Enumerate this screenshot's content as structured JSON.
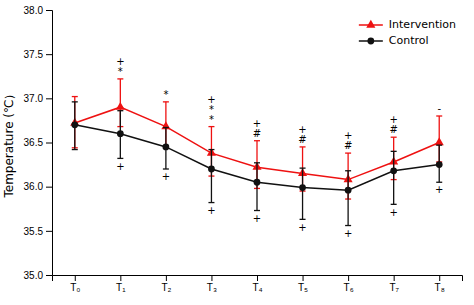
{
  "chart_data": {
    "type": "line",
    "y_label": "Temperature (℃）",
    "categories": [
      "T₀",
      "T₁",
      "T₂",
      "T₃",
      "T₄",
      "T₅",
      "T₆",
      "T₇",
      "T₈"
    ],
    "ylim": [
      35.0,
      38.0
    ],
    "yticks": [
      {
        "value": 35.0,
        "label": "35.0"
      },
      {
        "value": 35.5,
        "label": "35.5"
      },
      {
        "value": 36.0,
        "label": "36.0"
      },
      {
        "value": 36.5,
        "label": "36.5"
      },
      {
        "value": 37.0,
        "label": "37.0"
      },
      {
        "value": 37.5,
        "label": "37.5"
      },
      {
        "value": 38.0,
        "label": "38.0"
      }
    ],
    "grid": false,
    "legend": "upper right",
    "series": [
      {
        "name": "Intervention",
        "color": "#ee1111",
        "marker": "triangle",
        "line_style": "solid",
        "values": [
          36.72,
          36.9,
          36.68,
          36.38,
          36.22,
          36.15,
          36.08,
          36.28,
          36.5
        ],
        "yerr_upper": [
          0.3,
          0.32,
          0.28,
          0.3,
          0.3,
          0.3,
          0.3,
          0.28,
          0.3
        ],
        "yerr_lower": [
          0.28,
          0.22,
          0.22,
          0.26,
          0.24,
          0.2,
          0.22,
          0.2,
          0.22
        ],
        "annotation_position": "above",
        "annotations": [
          {
            "category": "T₁",
            "lines": [
              "+",
              "*"
            ]
          },
          {
            "category": "T₂",
            "lines": [
              "*"
            ]
          },
          {
            "category": "T₃",
            "lines": [
              "+",
              "*",
              "*"
            ]
          },
          {
            "category": "T₄",
            "lines": [
              "+",
              "#"
            ]
          },
          {
            "category": "T₅",
            "lines": [
              "+",
              "#"
            ]
          },
          {
            "category": "T₆",
            "lines": [
              "+",
              "#"
            ]
          },
          {
            "category": "T₇",
            "lines": [
              "+",
              "#"
            ]
          },
          {
            "category": "T₈",
            "lines": [
              "-"
            ]
          }
        ]
      },
      {
        "name": "Control",
        "color": "#111111",
        "marker": "circle",
        "line_style": "solid",
        "values": [
          36.7,
          36.6,
          36.45,
          36.2,
          36.05,
          35.99,
          35.96,
          36.18,
          36.25
        ],
        "yerr_upper": [
          0.26,
          0.26,
          0.22,
          0.22,
          0.22,
          0.22,
          0.22,
          0.22,
          0.22
        ],
        "yerr_lower": [
          0.28,
          0.28,
          0.25,
          0.38,
          0.32,
          0.36,
          0.4,
          0.38,
          0.2
        ],
        "annotation_position": "below",
        "annotations": [
          {
            "category": "T₁",
            "lines": [
              "+"
            ]
          },
          {
            "category": "T₂",
            "lines": [
              "+"
            ]
          },
          {
            "category": "T₃",
            "lines": [
              "+"
            ]
          },
          {
            "category": "T₄",
            "lines": [
              "+"
            ]
          },
          {
            "category": "T₅",
            "lines": [
              "+"
            ]
          },
          {
            "category": "T₆",
            "lines": [
              "+"
            ]
          },
          {
            "category": "T₇",
            "lines": [
              "+"
            ]
          },
          {
            "category": "T₈",
            "lines": [
              "+"
            ]
          }
        ]
      }
    ]
  }
}
